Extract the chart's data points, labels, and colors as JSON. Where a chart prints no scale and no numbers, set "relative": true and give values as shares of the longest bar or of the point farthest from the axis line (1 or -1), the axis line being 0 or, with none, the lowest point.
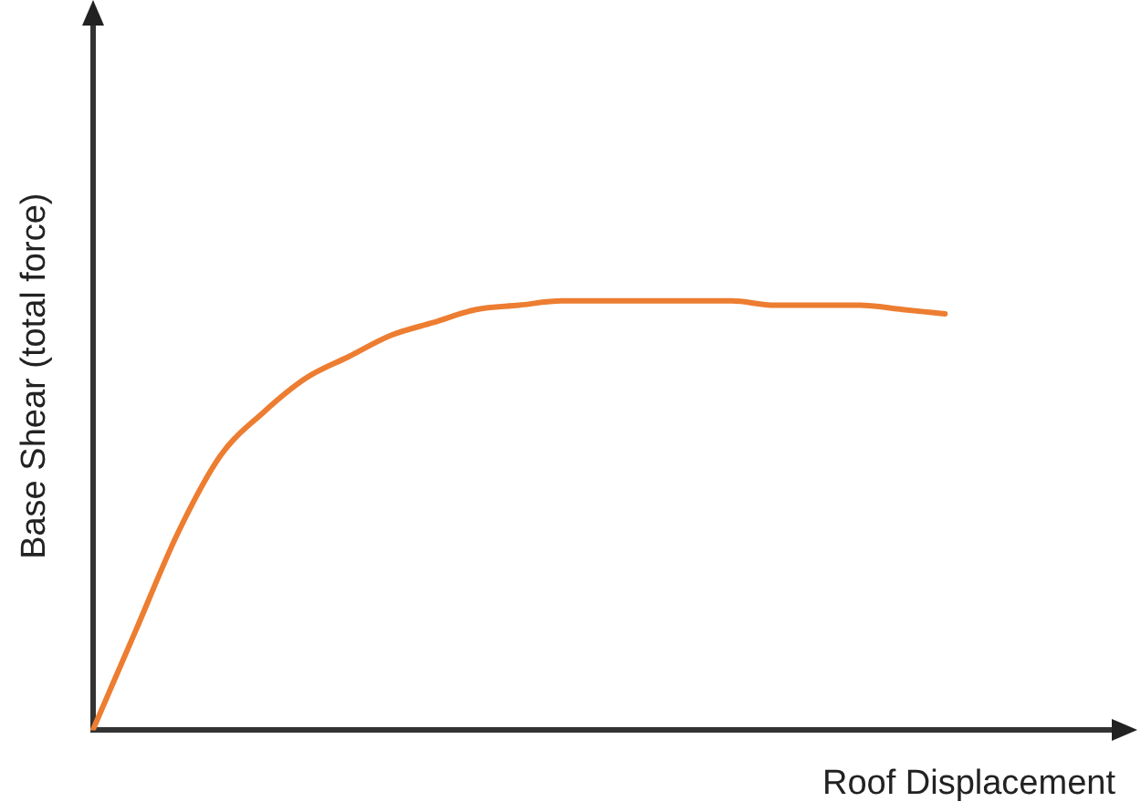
{
  "chart_data": {
    "type": "line",
    "relative": true,
    "xlabel": "Roof Displacement",
    "ylabel": "Base Shear (total force)",
    "categories": [
      null,
      null,
      null,
      null,
      null,
      null,
      null,
      null,
      null,
      null,
      null,
      null,
      null,
      null,
      null,
      null,
      null,
      null,
      null,
      null,
      null,
      null,
      null,
      null,
      null
    ],
    "series": [
      {
        "color": "#ed7d31",
        "values": [
          0,
          0.23,
          0.46,
          0.64,
          0.74,
          0.82,
          0.87,
          0.92,
          0.95,
          0.98,
          0.99,
          1,
          1,
          1,
          1,
          1,
          0.99,
          0.99,
          0.99,
          0.98,
          0.97,
          null,
          null,
          null,
          null
        ]
      }
    ],
    "grid": false,
    "legend": false,
    "marker": "none",
    "line_style": "solid"
  }
}
